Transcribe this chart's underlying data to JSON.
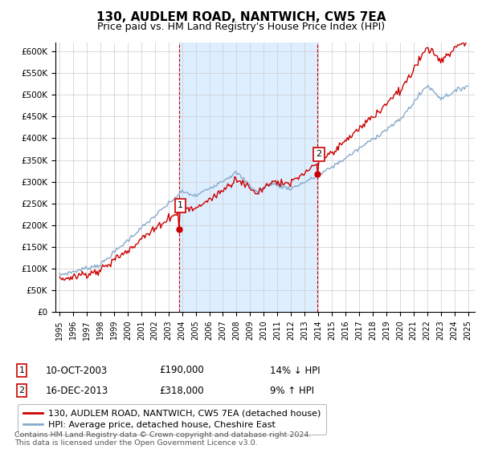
{
  "title": "130, AUDLEM ROAD, NANTWICH, CW5 7EA",
  "subtitle": "Price paid vs. HM Land Registry's House Price Index (HPI)",
  "title_fontsize": 11,
  "subtitle_fontsize": 9,
  "ylim": [
    0,
    620000
  ],
  "xlim_start": 1994.7,
  "xlim_end": 2025.5,
  "sale1_date": "10-OCT-2003",
  "sale1_price": "£190,000",
  "sale1_hpi": "14% ↓ HPI",
  "sale1_x": 2003.78,
  "sale1_y": 190000,
  "sale2_date": "16-DEC-2013",
  "sale2_price": "£318,000",
  "sale2_hpi": "9% ↑ HPI",
  "sale2_x": 2013.96,
  "sale2_y": 318000,
  "legend_line1": "130, AUDLEM ROAD, NANTWICH, CW5 7EA (detached house)",
  "legend_line2": "HPI: Average price, detached house, Cheshire East",
  "footer": "Contains HM Land Registry data © Crown copyright and database right 2024.\nThis data is licensed under the Open Government Licence v3.0.",
  "line_color_red": "#cc0000",
  "line_color_blue": "#88aacc",
  "shade_color": "#ddeeff",
  "vline_color": "#cc0000",
  "background_color": "#ffffff",
  "grid_color": "#cccccc"
}
